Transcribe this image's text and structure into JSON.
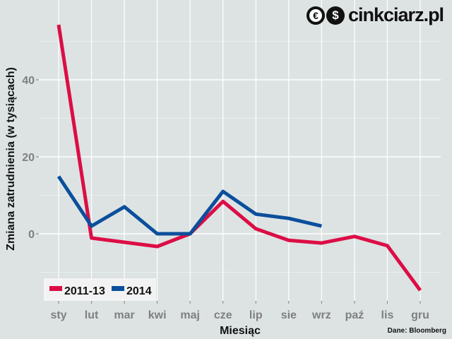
{
  "logo": {
    "text": "cinkciarz.pl",
    "euro": "€",
    "dollar": "$"
  },
  "source": "Dane: Bloomberg",
  "chart_data": {
    "type": "line",
    "xlabel": "Miesiąc",
    "ylabel": "Zmiana zatrudnienia (w tysiącach)",
    "categories": [
      "sty",
      "lut",
      "mar",
      "kwi",
      "maj",
      "cze",
      "lip",
      "sie",
      "wrz",
      "paź",
      "lis",
      "gru"
    ],
    "yticks": [
      0,
      20,
      40
    ],
    "ylim": [
      -17,
      61
    ],
    "grid": true,
    "legend_position": "bottom-left",
    "series": [
      {
        "name": "2011-13",
        "color": "#dc0d45",
        "values": [
          54.3,
          -1.1,
          -2.2,
          -3.3,
          0,
          8.4,
          1.3,
          -1.7,
          -2.4,
          -0.7,
          -3.1,
          -14.7
        ]
      },
      {
        "name": "2014",
        "color": "#0b4f9c",
        "values": [
          14.9,
          2,
          7,
          0,
          0,
          11,
          5.1,
          4,
          2,
          null,
          null,
          null
        ]
      }
    ]
  }
}
